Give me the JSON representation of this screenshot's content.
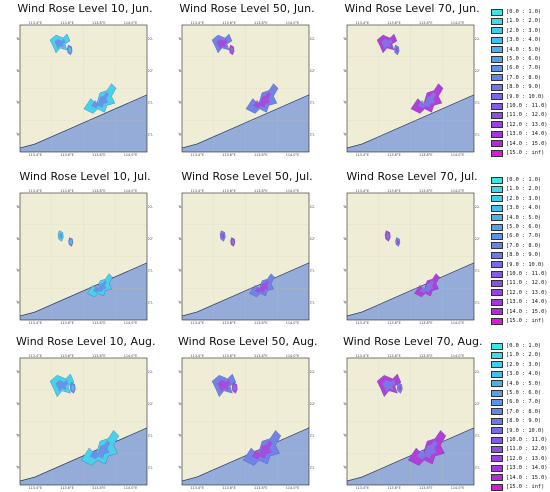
{
  "panels": [
    {
      "title": "Wind Rose Level 10, Jun.",
      "month": "Jun.",
      "level": 10
    },
    {
      "title": "Wind Rose Level 50, Jun.",
      "month": "Jun.",
      "level": 50
    },
    {
      "title": "Wind Rose Level 70, Jun.",
      "month": "Jun.",
      "level": 70
    },
    {
      "title": "Wind Rose Level 10, Jul.",
      "month": "Jul.",
      "level": 10
    },
    {
      "title": "Wind Rose Level 50, Jul.",
      "month": "Jul.",
      "level": 50
    },
    {
      "title": "Wind Rose Level 70, Jul.",
      "month": "Jul.",
      "level": 70
    },
    {
      "title": "Wind Rose Level 10, Aug.",
      "month": "Aug.",
      "level": 10
    },
    {
      "title": "Wind Rose Level 50, Aug.",
      "month": "Aug.",
      "level": 50
    },
    {
      "title": "Wind Rose Level 70, Aug.",
      "month": "Aug.",
      "level": 70
    }
  ],
  "axis_ticks": {
    "x": [
      "113.4°E",
      "113.6°E",
      "113.8°E",
      "114.0°E"
    ],
    "y": [
      "22.2°N",
      "22°N",
      "21.8°N",
      "21.6°N"
    ]
  },
  "legend": [
    {
      "label": "[0.0 : 1.0)",
      "color": "#3ee3e6"
    },
    {
      "label": "[1.0 : 2.0)",
      "color": "#40d9e8"
    },
    {
      "label": "[2.0 : 3.0)",
      "color": "#44cbe9"
    },
    {
      "label": "[3.0 : 4.0)",
      "color": "#49bde9"
    },
    {
      "label": "[4.0 : 5.0)",
      "color": "#4fafe9"
    },
    {
      "label": "[5.0 : 6.0)",
      "color": "#56a0e9"
    },
    {
      "label": "[6.0 : 7.0)",
      "color": "#5d92e8"
    },
    {
      "label": "[7.0 : 8.0)",
      "color": "#6585e7"
    },
    {
      "label": "[8.0 : 9.0)",
      "color": "#6e78e6"
    },
    {
      "label": "[9.0 : 10.0)",
      "color": "#786ae4"
    },
    {
      "label": "[10.0 : 11.0)",
      "color": "#825de2"
    },
    {
      "label": "[11.0 : 12.0)",
      "color": "#8d50df"
    },
    {
      "label": "[12.0 : 13.0)",
      "color": "#9843dc"
    },
    {
      "label": "[13.0 : 14.0)",
      "color": "#a537d9"
    },
    {
      "label": "[14.0 : 15.0)",
      "color": "#b52ad6"
    },
    {
      "label": "[15.0 : inf)",
      "color": "#e016d9"
    }
  ],
  "colors": {
    "land": "#efedd6",
    "sea": "#95abd8",
    "coast": "#2b3f66",
    "rose_low": "#45d2ea",
    "rose_mid": "#6f84e6",
    "rose_high": "#b23fd8"
  },
  "chart_data": {
    "type": "rose-map-grid",
    "rows": [
      "Jun.",
      "Jul.",
      "Aug."
    ],
    "cols": [
      "Level 10",
      "Level 50",
      "Level 70"
    ],
    "speed_bins": [
      "[0.0 : 1.0)",
      "[1.0 : 2.0)",
      "[2.0 : 3.0)",
      "[3.0 : 4.0)",
      "[4.0 : 5.0)",
      "[5.0 : 6.0)",
      "[6.0 : 7.0)",
      "[7.0 : 8.0)",
      "[8.0 : 9.0)",
      "[9.0 : 10.0)",
      "[10.0 : 11.0)",
      "[11.0 : 12.0)",
      "[12.0 : 13.0)",
      "[13.0 : 14.0)",
      "[14.0 : 15.0)",
      "[15.0 : inf)"
    ],
    "grid": true,
    "legend_position": "right"
  }
}
